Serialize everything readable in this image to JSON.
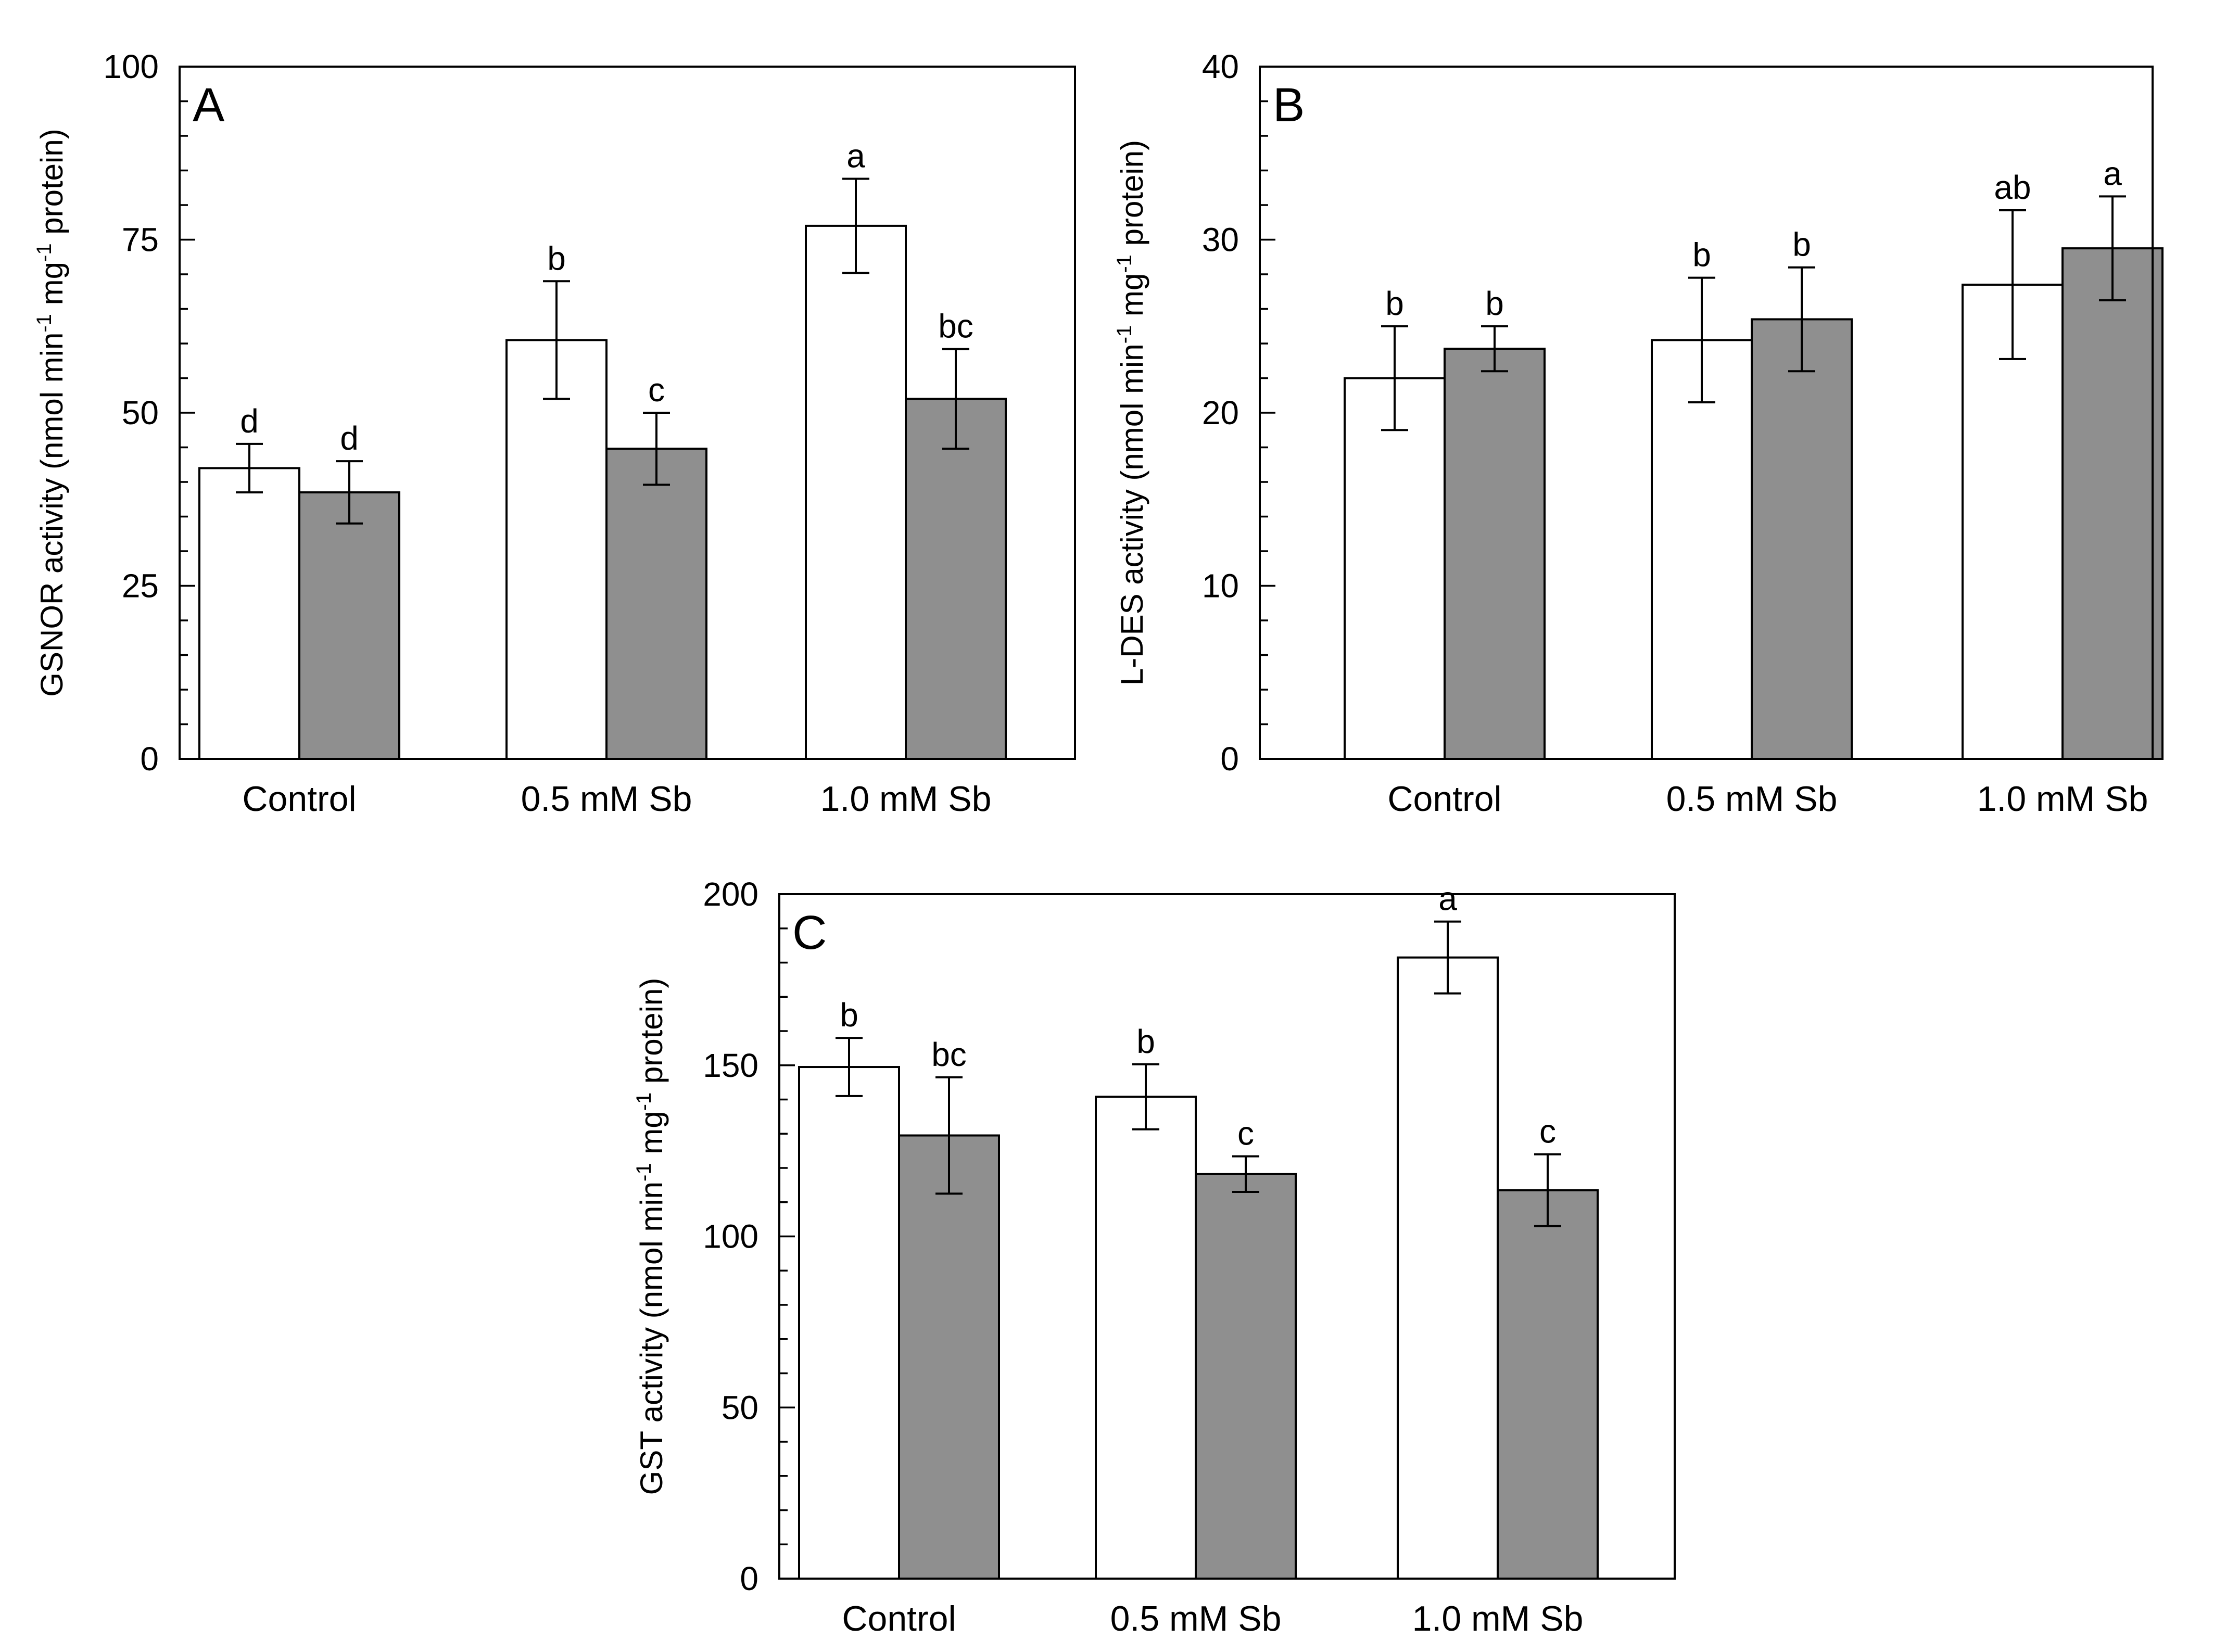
{
  "chart_data": [
    {
      "type": "bar",
      "panel": "A",
      "ylabel_parts": [
        "GSNOR  activity (nmol  min",
        "-1",
        " mg",
        "-1",
        " protein)"
      ],
      "ylim": [
        0,
        100
      ],
      "yticks": [
        0,
        25,
        50,
        75,
        100
      ],
      "ytick_labels": [
        "0",
        "25",
        "50",
        "75",
        "100"
      ],
      "grid": false,
      "categories": [
        "Control",
        "0.5 mM Sb",
        "1.0  mM Sb"
      ],
      "series": [
        {
          "name": "white",
          "color": "#ffffff",
          "values": [
            42,
            60.5,
            77
          ],
          "errors": [
            3.5,
            8.5,
            6.8
          ],
          "letters": [
            "d",
            "b",
            "a"
          ]
        },
        {
          "name": "gray",
          "color": "#8f8f8f",
          "values": [
            38.5,
            44.8,
            52
          ],
          "errors": [
            4.5,
            5.2,
            7.2
          ],
          "letters": [
            "d",
            "c",
            "bc"
          ]
        }
      ]
    },
    {
      "type": "bar",
      "panel": "B",
      "ylabel_parts": [
        "L-DES  activity (nmol  min",
        "-1",
        " mg",
        "-1",
        " protein)"
      ],
      "ylim": [
        0,
        40
      ],
      "yticks": [
        0,
        10,
        20,
        30,
        40
      ],
      "ytick_labels": [
        "0",
        "10",
        "20",
        "30",
        "40"
      ],
      "grid": false,
      "categories": [
        "Control",
        "0.5 mM Sb",
        "1.0  mM Sb"
      ],
      "series": [
        {
          "name": "white",
          "color": "#ffffff",
          "values": [
            22,
            24.2,
            27.4
          ],
          "errors": [
            3.0,
            3.6,
            4.3
          ],
          "letters": [
            "b",
            "b",
            "ab"
          ]
        },
        {
          "name": "gray",
          "color": "#8f8f8f",
          "values": [
            23.7,
            25.4,
            29.5
          ],
          "errors": [
            1.3,
            3.0,
            3.0
          ],
          "letters": [
            "b",
            "b",
            "a"
          ]
        }
      ]
    },
    {
      "type": "bar",
      "panel": "C",
      "ylabel_parts": [
        "GST  activity (nmol  min",
        "-1",
        " mg",
        "-1",
        " protein)"
      ],
      "ylim": [
        0,
        200
      ],
      "yticks": [
        0,
        50,
        100,
        150,
        200
      ],
      "ytick_labels": [
        "0",
        "50",
        "100",
        "150",
        "200"
      ],
      "grid": false,
      "categories": [
        "Control",
        "0.5 mM Sb",
        "1.0  mM Sb"
      ],
      "series": [
        {
          "name": "white",
          "color": "#ffffff",
          "values": [
            149.5,
            140.8,
            181.5
          ],
          "errors": [
            8.5,
            9.5,
            10.5
          ],
          "letters": [
            "b",
            "b",
            "a"
          ]
        },
        {
          "name": "gray",
          "color": "#8f8f8f",
          "values": [
            129.5,
            118.2,
            113.5
          ],
          "errors": [
            17,
            5.2,
            10.5
          ],
          "letters": [
            "bc",
            "c",
            "c"
          ]
        }
      ]
    }
  ]
}
